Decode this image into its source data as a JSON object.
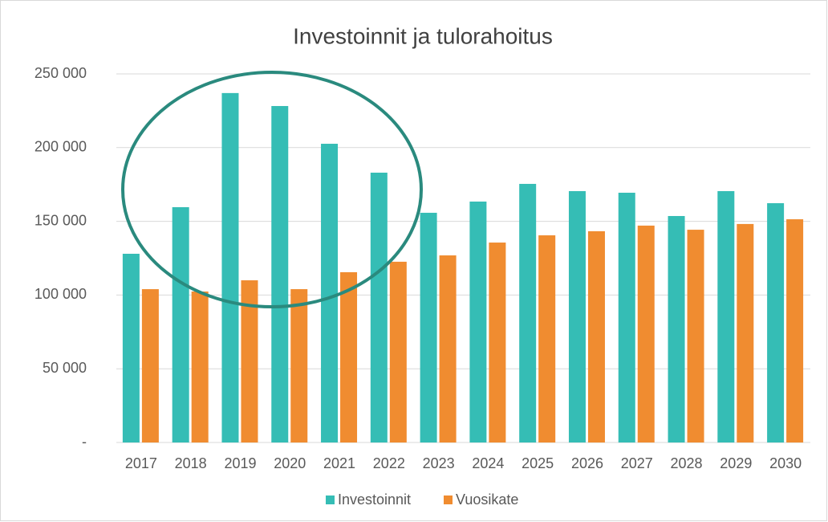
{
  "chart_data": {
    "type": "bar",
    "title": "Investoinnit ja tulorahoitus",
    "categories": [
      "2017",
      "2018",
      "2019",
      "2020",
      "2021",
      "2022",
      "2023",
      "2024",
      "2025",
      "2026",
      "2027",
      "2028",
      "2029",
      "2030"
    ],
    "series": [
      {
        "name": "Investoinnit",
        "color": "#35bdb5",
        "values": [
          128000,
          159600,
          237000,
          228200,
          202600,
          183000,
          155800,
          163400,
          175400,
          170500,
          169400,
          153600,
          170500,
          162300
        ]
      },
      {
        "name": "Vuosikate",
        "color": "#f08c30",
        "values": [
          104000,
          102400,
          110000,
          104000,
          115500,
          122600,
          126900,
          135600,
          140500,
          143300,
          147100,
          144300,
          148200,
          151400
        ]
      }
    ],
    "ylim": [
      0,
      250000
    ],
    "yticks": [
      {
        "value": 0,
        "label": "-"
      },
      {
        "value": 50000,
        "label": "50 000"
      },
      {
        "value": 100000,
        "label": "100 000"
      },
      {
        "value": 150000,
        "label": "150 000"
      },
      {
        "value": 200000,
        "label": "200 000"
      },
      {
        "value": 250000,
        "label": "250 000"
      }
    ],
    "grid": true,
    "legend": "bottom"
  }
}
